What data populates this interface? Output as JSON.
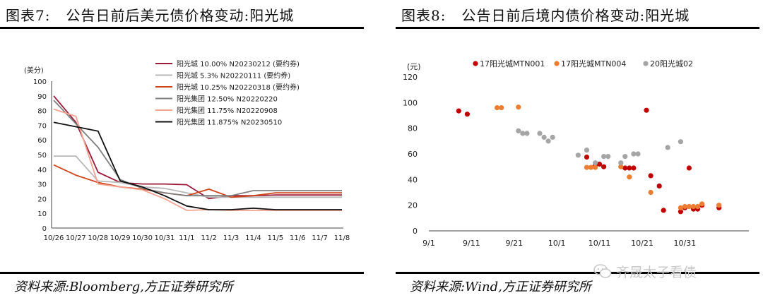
{
  "left": {
    "title_num": "图表7:",
    "title_text": "公告日前后美元债价格变动:阳光城",
    "source": "资料来源:Bloomberg,方正证券研究所"
  },
  "right": {
    "title_num": "图表8:",
    "title_text": "公告日前后境内债价格变动:阳光城",
    "source": "资料来源:Wind,方正证券研究所"
  },
  "watermark": "齐晟太子看债",
  "chart_data": [
    {
      "type": "line",
      "ylabel": "(美分)",
      "ylim": [
        0,
        100
      ],
      "yticks": [
        0,
        10,
        20,
        30,
        40,
        50,
        60,
        70,
        80,
        90,
        100
      ],
      "categories": [
        "10/26",
        "10/27",
        "10/28",
        "10/29",
        "10/30",
        "10/31",
        "11/1",
        "11/2",
        "11/3",
        "11/4",
        "11/5",
        "11/6",
        "11/7",
        "11/8"
      ],
      "legend_position": "top-right",
      "series": [
        {
          "name": "阳光城 10.00% N20230212 (要约券)",
          "color": "#9b1c3a",
          "values": [
            90,
            72,
            38,
            31,
            30,
            30,
            29.5,
            20,
            22,
            22,
            22.5,
            22.5,
            22.5,
            22.5
          ]
        },
        {
          "name": "阳光城 5.3% N20220111 (要约券)",
          "color": "#b8b8b8",
          "values": [
            49,
            49,
            32,
            31,
            28,
            27,
            24,
            21,
            21,
            21,
            21,
            21,
            21,
            21
          ]
        },
        {
          "name": "阳光城 10.25% N20220318 (要约券)",
          "color": "#d0451b",
          "values": [
            43,
            36,
            31,
            28,
            26.5,
            24,
            22,
            26.5,
            21,
            22,
            24,
            24,
            24,
            24
          ]
        },
        {
          "name": "阳光集团 12.50% N20220220",
          "color": "#7f7f7f",
          "values": [
            87,
            71,
            55,
            33,
            27,
            24,
            22,
            22,
            22,
            25.5,
            25.5,
            25.5,
            25.5,
            25.5
          ]
        },
        {
          "name": "阳光集团 11.75% N20220908",
          "color": "#f4a391",
          "values": [
            81,
            76,
            30,
            28,
            26,
            20,
            12,
            12.5,
            12,
            12,
            12,
            12,
            12,
            12
          ]
        },
        {
          "name": "阳光集团 11.875% N20230510",
          "color": "#111111",
          "values": [
            72,
            69,
            66,
            32,
            28,
            22,
            15,
            12.5,
            12.5,
            13.5,
            12.5,
            12.5,
            12.5,
            12.5
          ]
        }
      ]
    },
    {
      "type": "scatter",
      "ylabel": "(元)",
      "ylim": [
        0,
        120
      ],
      "yticks": [
        0,
        20,
        40,
        60,
        80,
        100,
        120
      ],
      "xticks": [
        "9/1",
        "9/11",
        "9/21",
        "10/1",
        "10/11",
        "10/21",
        "10/31"
      ],
      "x_unit": "day index from 9/1",
      "legend_position": "top",
      "series": [
        {
          "name": "17阳光城MTN001",
          "color": "#c00000",
          "points": [
            [
              7,
              93.5
            ],
            [
              9,
              91
            ],
            [
              37,
              57.5
            ],
            [
              39,
              51
            ],
            [
              40,
              52
            ],
            [
              41,
              50
            ],
            [
              46,
              49
            ],
            [
              47,
              49
            ],
            [
              48,
              49
            ],
            [
              51,
              94
            ],
            [
              52,
              43
            ],
            [
              54,
              35
            ],
            [
              55,
              16
            ],
            [
              59,
              15
            ],
            [
              60,
              18
            ],
            [
              61,
              49
            ],
            [
              62,
              17
            ],
            [
              63,
              17
            ],
            [
              64,
              20
            ],
            [
              68,
              18
            ]
          ]
        },
        {
          "name": "17阳光城MTN004",
          "color": "#ed7d31",
          "points": [
            [
              16,
              96
            ],
            [
              17,
              96
            ],
            [
              21,
              96.5
            ],
            [
              37,
              49.5
            ],
            [
              38,
              49.5
            ],
            [
              39,
              49.5
            ],
            [
              45,
              50
            ],
            [
              47,
              42
            ],
            [
              52,
              30
            ],
            [
              59,
              18
            ],
            [
              60,
              19
            ],
            [
              61,
              19
            ],
            [
              62,
              19
            ],
            [
              63,
              19
            ],
            [
              64,
              21
            ],
            [
              68,
              20
            ]
          ]
        },
        {
          "name": "20阳光城02",
          "color": "#a5a5a5",
          "points": [
            [
              21,
              78
            ],
            [
              22,
              76
            ],
            [
              23,
              76
            ],
            [
              26,
              76
            ],
            [
              27,
              73
            ],
            [
              28,
              70
            ],
            [
              29,
              73
            ],
            [
              35,
              59
            ],
            [
              37,
              63
            ],
            [
              39,
              53
            ],
            [
              41,
              58
            ],
            [
              42,
              58
            ],
            [
              45,
              53
            ],
            [
              46,
              58
            ],
            [
              48,
              60
            ],
            [
              49,
              60
            ],
            [
              56,
              65
            ],
            [
              59,
              69.5
            ]
          ]
        }
      ]
    }
  ]
}
